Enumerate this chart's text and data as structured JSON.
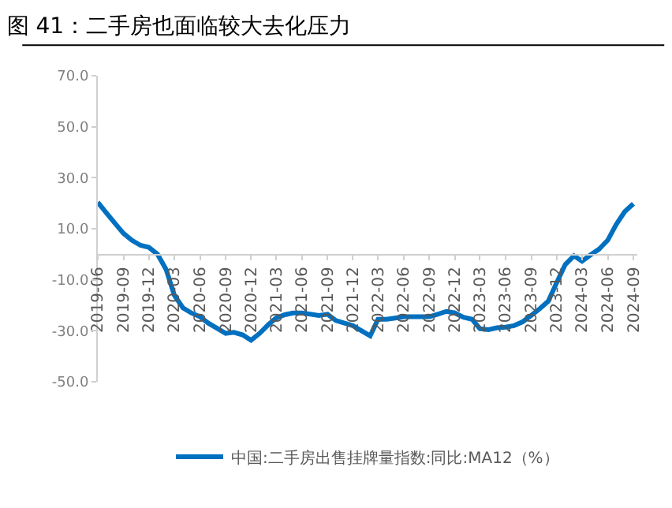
{
  "chart_data": {
    "type": "line",
    "title": "图 41：二手房也面临较大去化压力",
    "x": [
      "2019-06",
      "2019-07",
      "2019-08",
      "2019-09",
      "2019-10",
      "2019-11",
      "2019-12",
      "2020-01",
      "2020-02",
      "2020-03",
      "2020-04",
      "2020-05",
      "2020-06",
      "2020-07",
      "2020-08",
      "2020-09",
      "2020-10",
      "2020-11",
      "2020-12",
      "2021-01",
      "2021-02",
      "2021-03",
      "2021-04",
      "2021-05",
      "2021-06",
      "2021-07",
      "2021-08",
      "2021-09",
      "2021-10",
      "2021-11",
      "2021-12",
      "2022-01",
      "2022-02",
      "2022-03",
      "2022-04",
      "2022-05",
      "2022-06",
      "2022-07",
      "2022-08",
      "2022-09",
      "2022-10",
      "2022-11",
      "2022-12",
      "2023-01",
      "2023-02",
      "2023-03",
      "2023-04",
      "2023-05",
      "2023-06",
      "2023-07",
      "2023-08",
      "2023-09",
      "2023-10",
      "2023-11",
      "2023-12",
      "2024-01",
      "2024-02",
      "2024-03",
      "2024-04",
      "2024-05",
      "2024-06",
      "2024-07",
      "2024-08",
      "2024-09"
    ],
    "series": [
      {
        "name": "中国:二手房出售挂牌量指数:同比:MA12（%）",
        "color": "#0070c0",
        "values": [
          20.4,
          16.3,
          12.2,
          8.2,
          5.5,
          3.5,
          2.7,
          0,
          -6,
          -16,
          -21,
          -23,
          -24.5,
          -27,
          -29,
          -31,
          -30.6,
          -31.6,
          -33.7,
          -31,
          -27.6,
          -25,
          -23.7,
          -23,
          -23,
          -23.5,
          -24,
          -23.5,
          -26,
          -27,
          -28,
          -30,
          -32,
          -25.5,
          -25.5,
          -25,
          -24.5,
          -24.5,
          -24.5,
          -24.5,
          -23.5,
          -22.4,
          -23,
          -24.7,
          -25.5,
          -29.2,
          -29.6,
          -28.8,
          -28.6,
          -28,
          -26.5,
          -24,
          -21.4,
          -18.4,
          -11.2,
          -4,
          -0.6,
          -2.7,
          -0.2,
          2,
          5.5,
          11.6,
          16.7,
          19.8
        ]
      }
    ],
    "xlim": [
      "2019-06",
      "2024-09-15"
    ],
    "xticks": [
      "2019-06",
      "2019-09",
      "2019-12",
      "2020-03",
      "2020-06",
      "2020-09",
      "2020-12",
      "2021-03",
      "2021-06",
      "2021-09",
      "2021-12",
      "2022-03",
      "2022-06",
      "2022-09",
      "2022-12",
      "2023-03",
      "2023-06",
      "2023-09",
      "2023-12",
      "2024-03",
      "2024-06",
      "2024-09"
    ],
    "ylim": [
      -50,
      70
    ],
    "yticks": [
      {
        "value": 70,
        "label": "70.0"
      },
      {
        "value": 50,
        "label": "50.0"
      },
      {
        "value": 30,
        "label": "30.0"
      },
      {
        "value": 10,
        "label": "10.0"
      },
      {
        "value": -10,
        "label": "-10.0"
      },
      {
        "value": -30,
        "label": "-30.0"
      },
      {
        "value": -50,
        "label": "-50.0"
      }
    ],
    "grid": false,
    "legend": "bottom",
    "marker": "none",
    "line_style": "solid"
  }
}
